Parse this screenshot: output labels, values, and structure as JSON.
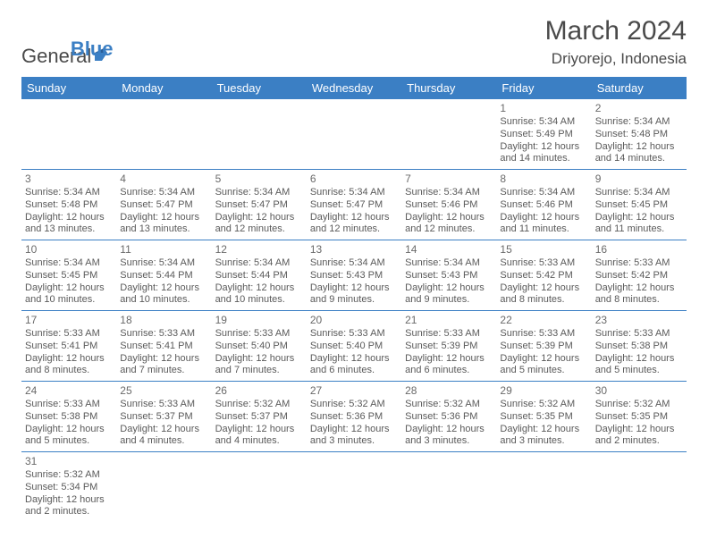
{
  "logo": {
    "text_a": "General",
    "text_b": "Blue"
  },
  "title": "March 2024",
  "location": "Driyorejo, Indonesia",
  "day_headers": [
    "Sunday",
    "Monday",
    "Tuesday",
    "Wednesday",
    "Thursday",
    "Friday",
    "Saturday"
  ],
  "colors": {
    "header_bg": "#3b7fc4",
    "header_text": "#ffffff",
    "cell_border": "#3b7fc4",
    "body_text": "#5a5a5a",
    "title_text": "#4a4a4a"
  },
  "weeks": [
    [
      null,
      null,
      null,
      null,
      null,
      {
        "n": "1",
        "sunrise": "5:34 AM",
        "sunset": "5:49 PM",
        "daylight": "12 hours and 14 minutes."
      },
      {
        "n": "2",
        "sunrise": "5:34 AM",
        "sunset": "5:48 PM",
        "daylight": "12 hours and 14 minutes."
      }
    ],
    [
      {
        "n": "3",
        "sunrise": "5:34 AM",
        "sunset": "5:48 PM",
        "daylight": "12 hours and 13 minutes."
      },
      {
        "n": "4",
        "sunrise": "5:34 AM",
        "sunset": "5:47 PM",
        "daylight": "12 hours and 13 minutes."
      },
      {
        "n": "5",
        "sunrise": "5:34 AM",
        "sunset": "5:47 PM",
        "daylight": "12 hours and 12 minutes."
      },
      {
        "n": "6",
        "sunrise": "5:34 AM",
        "sunset": "5:47 PM",
        "daylight": "12 hours and 12 minutes."
      },
      {
        "n": "7",
        "sunrise": "5:34 AM",
        "sunset": "5:46 PM",
        "daylight": "12 hours and 12 minutes."
      },
      {
        "n": "8",
        "sunrise": "5:34 AM",
        "sunset": "5:46 PM",
        "daylight": "12 hours and 11 minutes."
      },
      {
        "n": "9",
        "sunrise": "5:34 AM",
        "sunset": "5:45 PM",
        "daylight": "12 hours and 11 minutes."
      }
    ],
    [
      {
        "n": "10",
        "sunrise": "5:34 AM",
        "sunset": "5:45 PM",
        "daylight": "12 hours and 10 minutes."
      },
      {
        "n": "11",
        "sunrise": "5:34 AM",
        "sunset": "5:44 PM",
        "daylight": "12 hours and 10 minutes."
      },
      {
        "n": "12",
        "sunrise": "5:34 AM",
        "sunset": "5:44 PM",
        "daylight": "12 hours and 10 minutes."
      },
      {
        "n": "13",
        "sunrise": "5:34 AM",
        "sunset": "5:43 PM",
        "daylight": "12 hours and 9 minutes."
      },
      {
        "n": "14",
        "sunrise": "5:34 AM",
        "sunset": "5:43 PM",
        "daylight": "12 hours and 9 minutes."
      },
      {
        "n": "15",
        "sunrise": "5:33 AM",
        "sunset": "5:42 PM",
        "daylight": "12 hours and 8 minutes."
      },
      {
        "n": "16",
        "sunrise": "5:33 AM",
        "sunset": "5:42 PM",
        "daylight": "12 hours and 8 minutes."
      }
    ],
    [
      {
        "n": "17",
        "sunrise": "5:33 AM",
        "sunset": "5:41 PM",
        "daylight": "12 hours and 8 minutes."
      },
      {
        "n": "18",
        "sunrise": "5:33 AM",
        "sunset": "5:41 PM",
        "daylight": "12 hours and 7 minutes."
      },
      {
        "n": "19",
        "sunrise": "5:33 AM",
        "sunset": "5:40 PM",
        "daylight": "12 hours and 7 minutes."
      },
      {
        "n": "20",
        "sunrise": "5:33 AM",
        "sunset": "5:40 PM",
        "daylight": "12 hours and 6 minutes."
      },
      {
        "n": "21",
        "sunrise": "5:33 AM",
        "sunset": "5:39 PM",
        "daylight": "12 hours and 6 minutes."
      },
      {
        "n": "22",
        "sunrise": "5:33 AM",
        "sunset": "5:39 PM",
        "daylight": "12 hours and 5 minutes."
      },
      {
        "n": "23",
        "sunrise": "5:33 AM",
        "sunset": "5:38 PM",
        "daylight": "12 hours and 5 minutes."
      }
    ],
    [
      {
        "n": "24",
        "sunrise": "5:33 AM",
        "sunset": "5:38 PM",
        "daylight": "12 hours and 5 minutes."
      },
      {
        "n": "25",
        "sunrise": "5:33 AM",
        "sunset": "5:37 PM",
        "daylight": "12 hours and 4 minutes."
      },
      {
        "n": "26",
        "sunrise": "5:32 AM",
        "sunset": "5:37 PM",
        "daylight": "12 hours and 4 minutes."
      },
      {
        "n": "27",
        "sunrise": "5:32 AM",
        "sunset": "5:36 PM",
        "daylight": "12 hours and 3 minutes."
      },
      {
        "n": "28",
        "sunrise": "5:32 AM",
        "sunset": "5:36 PM",
        "daylight": "12 hours and 3 minutes."
      },
      {
        "n": "29",
        "sunrise": "5:32 AM",
        "sunset": "5:35 PM",
        "daylight": "12 hours and 3 minutes."
      },
      {
        "n": "30",
        "sunrise": "5:32 AM",
        "sunset": "5:35 PM",
        "daylight": "12 hours and 2 minutes."
      }
    ],
    [
      {
        "n": "31",
        "sunrise": "5:32 AM",
        "sunset": "5:34 PM",
        "daylight": "12 hours and 2 minutes."
      },
      null,
      null,
      null,
      null,
      null,
      null
    ]
  ],
  "labels": {
    "sunrise": "Sunrise: ",
    "sunset": "Sunset: ",
    "daylight": "Daylight: "
  }
}
